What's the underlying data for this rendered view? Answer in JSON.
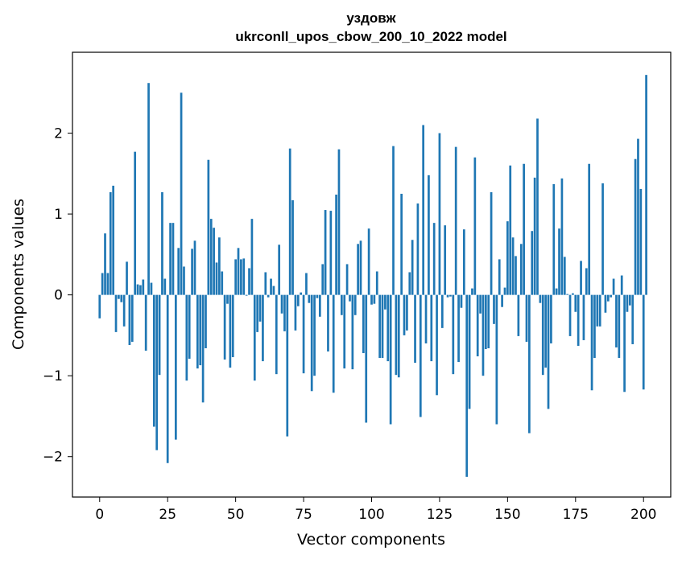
{
  "chart_data": {
    "type": "bar",
    "title": "уздовж",
    "subtitle": "ukrconll_upos_cbow_200_10_2022 model",
    "xlabel": "Vector components",
    "ylabel": "Components values",
    "xlim": [
      -10,
      210
    ],
    "ylim": [
      -2.5,
      3.0
    ],
    "xticks": [
      0,
      25,
      50,
      75,
      100,
      125,
      150,
      175,
      200
    ],
    "yticks": [
      -2,
      -1,
      0,
      1,
      2
    ],
    "ytick_labels": [
      "−2",
      "−1",
      "0",
      "1",
      "2"
    ],
    "grid": false,
    "bar_color": "#1f77b4",
    "x_start": 0,
    "values": [
      -0.29,
      0.27,
      0.76,
      0.27,
      1.27,
      1.35,
      -0.46,
      -0.05,
      -0.09,
      -0.39,
      0.41,
      -0.62,
      -0.58,
      1.77,
      0.13,
      0.12,
      0.19,
      -0.69,
      2.62,
      0.15,
      -1.63,
      -1.92,
      -0.99,
      1.27,
      0.2,
      -2.08,
      0.89,
      0.89,
      -1.79,
      0.58,
      2.5,
      0.35,
      -1.06,
      -0.79,
      0.57,
      0.67,
      -0.91,
      -0.87,
      -1.33,
      -0.66,
      1.67,
      0.94,
      0.83,
      0.4,
      0.71,
      0.29,
      -0.8,
      -0.11,
      -0.9,
      -0.77,
      0.44,
      0.58,
      0.44,
      0.45,
      -0.01,
      0.33,
      0.94,
      -1.06,
      -0.46,
      -0.33,
      -0.82,
      0.28,
      -0.03,
      0.2,
      0.11,
      -0.98,
      0.62,
      -0.23,
      -0.45,
      -1.75,
      1.81,
      1.17,
      -0.44,
      -0.14,
      0.03,
      -0.97,
      0.27,
      -0.1,
      -1.19,
      -1.0,
      -0.04,
      -0.27,
      0.38,
      1.05,
      -0.7,
      1.04,
      -1.21,
      1.24,
      1.8,
      -0.25,
      -0.91,
      0.38,
      -0.08,
      -0.92,
      -0.25,
      0.63,
      0.67,
      -0.72,
      -1.58,
      0.82,
      -0.12,
      -0.11,
      0.29,
      -0.78,
      -0.78,
      -0.18,
      -0.82,
      -1.6,
      1.84,
      -0.99,
      -1.02,
      1.25,
      -0.5,
      -0.44,
      0.28,
      0.68,
      -0.84,
      1.13,
      -1.51,
      2.1,
      -0.6,
      1.48,
      -0.82,
      0.89,
      -1.24,
      2.0,
      -0.41,
      0.86,
      -0.03,
      -0.02,
      -0.98,
      1.83,
      -0.83,
      -0.16,
      0.81,
      -2.25,
      -1.41,
      0.08,
      1.7,
      -0.76,
      -0.23,
      -1.0,
      -0.67,
      -0.66,
      1.27,
      -0.36,
      -1.6,
      0.44,
      -0.15,
      0.09,
      0.91,
      1.6,
      0.71,
      0.48,
      -0.51,
      0.63,
      1.62,
      -0.58,
      -1.71,
      0.79,
      1.45,
      2.18,
      -0.1,
      -0.99,
      -0.9,
      -1.41,
      -0.6,
      1.37,
      0.08,
      0.82,
      1.44,
      0.47,
      0.01,
      -0.51,
      0.02,
      -0.21,
      -0.63,
      0.42,
      -0.56,
      0.33,
      1.62,
      -1.18,
      -0.78,
      -0.39,
      -0.39,
      1.38,
      -0.22,
      -0.08,
      -0.03,
      0.2,
      -0.65,
      -0.78,
      0.24,
      -1.2,
      -0.21,
      -0.13,
      -0.61,
      1.68,
      1.93,
      1.31,
      -1.17,
      2.72
    ]
  }
}
